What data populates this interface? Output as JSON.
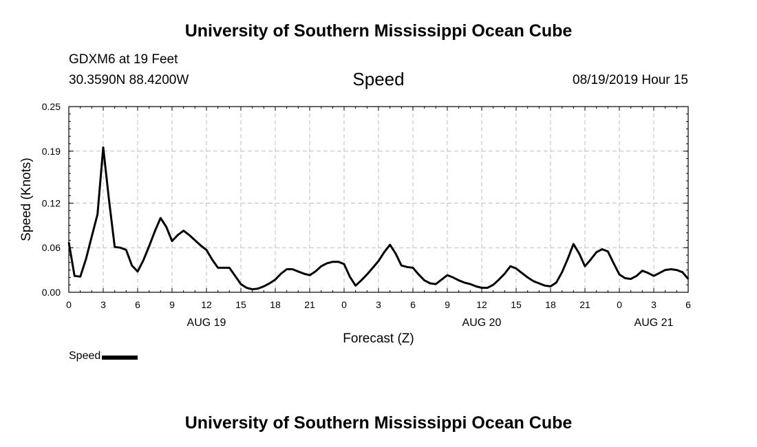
{
  "page": {
    "title_top": "University of Southern Mississippi Ocean Cube",
    "title_bottom": "University of Southern Mississippi Ocean Cube",
    "station": "GDXM6 at 19 Feet",
    "location": "30.3590N 88.4200W",
    "variable": "Speed",
    "issued": "08/19/2019 Hour 15"
  },
  "chart_data": {
    "type": "line",
    "title": "Speed",
    "xlabel": "Forecast (Z)",
    "ylabel": "Speed (Knots)",
    "ylim": [
      0,
      0.25
    ],
    "y_ticks": [
      0.0,
      0.06,
      0.12,
      0.19,
      0.25
    ],
    "y_tick_labels": [
      "0.00",
      "0.06",
      "0.12",
      "0.19",
      "0.25"
    ],
    "xlim": [
      0,
      54
    ],
    "x_ticks": [
      0,
      3,
      6,
      9,
      12,
      15,
      18,
      21,
      24,
      27,
      30,
      33,
      36,
      39,
      42,
      45,
      48,
      51,
      54
    ],
    "x_tick_labels": [
      "0",
      "3",
      "6",
      "9",
      "12",
      "15",
      "18",
      "21",
      "0",
      "3",
      "6",
      "9",
      "12",
      "15",
      "18",
      "21",
      "0",
      "3",
      "6"
    ],
    "date_labels": [
      {
        "label": "AUG 19",
        "x": 12
      },
      {
        "label": "AUG 20",
        "x": 36
      },
      {
        "label": "AUG 21",
        "x": 51
      }
    ],
    "grid": true,
    "legend": {
      "label": "Speed",
      "position": "bottom-left"
    },
    "series": [
      {
        "name": "Speed",
        "color": "#000000",
        "x": [
          0,
          0.5,
          1,
          1.5,
          2,
          2.5,
          3,
          3.5,
          4,
          4.5,
          5,
          5.5,
          6,
          6.5,
          7,
          7.5,
          8,
          8.5,
          9,
          9.5,
          10,
          10.5,
          11,
          11.5,
          12,
          12.5,
          13,
          13.5,
          14,
          14.5,
          15,
          15.5,
          16,
          16.5,
          17,
          17.5,
          18,
          18.5,
          19,
          19.5,
          20,
          20.5,
          21,
          21.5,
          22,
          22.5,
          23,
          23.5,
          24,
          24.5,
          25,
          25.5,
          26,
          26.5,
          27,
          27.5,
          28,
          28.5,
          29,
          29.5,
          30,
          30.5,
          31,
          31.5,
          32,
          32.5,
          33,
          33.5,
          34,
          34.5,
          35,
          35.5,
          36,
          36.5,
          37,
          37.5,
          38,
          38.5,
          39,
          39.5,
          40,
          40.5,
          41,
          41.5,
          42,
          42.5,
          43,
          43.5,
          44,
          44.5,
          45,
          45.5,
          46,
          46.5,
          47,
          47.5,
          48,
          48.5,
          49,
          49.5,
          50,
          50.5,
          51,
          51.5,
          52,
          52.5,
          53,
          53.5,
          54
        ],
        "values": [
          0.067,
          0.022,
          0.021,
          0.045,
          0.075,
          0.105,
          0.195,
          0.125,
          0.061,
          0.06,
          0.057,
          0.036,
          0.028,
          0.043,
          0.062,
          0.082,
          0.1,
          0.088,
          0.069,
          0.077,
          0.083,
          0.077,
          0.07,
          0.063,
          0.057,
          0.044,
          0.033,
          0.033,
          0.033,
          0.022,
          0.011,
          0.006,
          0.004,
          0.005,
          0.008,
          0.012,
          0.017,
          0.025,
          0.031,
          0.031,
          0.028,
          0.025,
          0.023,
          0.028,
          0.035,
          0.039,
          0.041,
          0.041,
          0.038,
          0.021,
          0.009,
          0.016,
          0.024,
          0.033,
          0.042,
          0.054,
          0.064,
          0.052,
          0.036,
          0.034,
          0.033,
          0.024,
          0.016,
          0.012,
          0.011,
          0.017,
          0.023,
          0.02,
          0.016,
          0.013,
          0.011,
          0.008,
          0.006,
          0.006,
          0.01,
          0.017,
          0.025,
          0.035,
          0.032,
          0.026,
          0.02,
          0.015,
          0.012,
          0.009,
          0.008,
          0.013,
          0.027,
          0.045,
          0.065,
          0.052,
          0.035,
          0.044,
          0.054,
          0.058,
          0.055,
          0.039,
          0.024,
          0.019,
          0.018,
          0.022,
          0.029,
          0.026,
          0.022,
          0.026,
          0.03,
          0.031,
          0.03,
          0.027,
          0.018
        ]
      }
    ]
  }
}
